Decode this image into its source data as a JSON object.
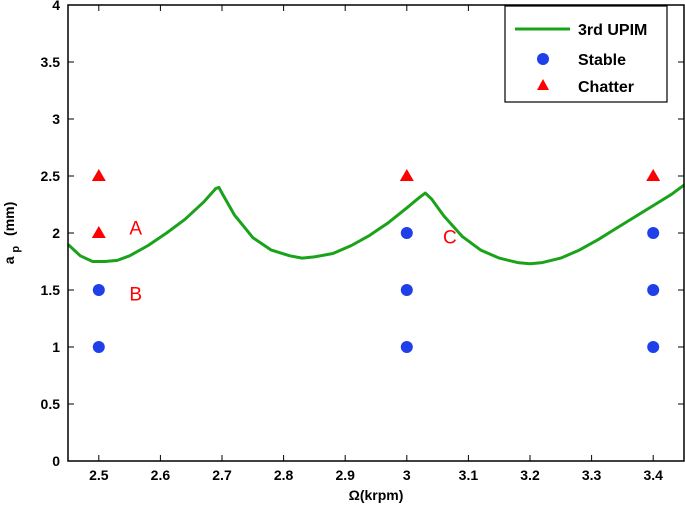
{
  "chart_data": {
    "type": "scatter",
    "xlabel": "Ω(krpm)",
    "ylabel_main": "a",
    "ylabel_sub": "p",
    "ylabel_unit": "(mm)",
    "xlim": [
      2.45,
      3.45
    ],
    "ylim": [
      0,
      4
    ],
    "xticks": [
      2.5,
      2.6,
      2.7,
      2.8,
      2.9,
      3,
      3.1,
      3.2,
      3.3,
      3.4
    ],
    "xtick_labels": [
      "2.5",
      "2.6",
      "2.7",
      "2.8",
      "2.9",
      "3",
      "3.1",
      "3.2",
      "3.3",
      "3.4"
    ],
    "yticks": [
      0,
      0.5,
      1,
      1.5,
      2,
      2.5,
      3,
      3.5,
      4
    ],
    "ytick_labels": [
      "0",
      "0.5",
      "1",
      "1.5",
      "2",
      "2.5",
      "3",
      "3.5",
      "4"
    ],
    "grid": false,
    "legend_position": "top-right",
    "colors": {
      "line": "#1aa31a",
      "stable": "#1f3fe8",
      "chatter": "#ff0000"
    },
    "series": [
      {
        "name": "3rd UPIM",
        "kind": "line",
        "x": [
          2.45,
          2.47,
          2.49,
          2.51,
          2.53,
          2.55,
          2.58,
          2.61,
          2.64,
          2.67,
          2.69,
          2.695,
          2.7,
          2.72,
          2.75,
          2.78,
          2.81,
          2.83,
          2.85,
          2.88,
          2.91,
          2.94,
          2.97,
          3.0,
          3.02,
          3.03,
          3.04,
          3.06,
          3.09,
          3.12,
          3.15,
          3.18,
          3.2,
          3.22,
          3.25,
          3.28,
          3.31,
          3.34,
          3.37,
          3.4,
          3.43,
          3.45
        ],
        "y": [
          1.9,
          1.8,
          1.75,
          1.75,
          1.76,
          1.8,
          1.89,
          2.0,
          2.12,
          2.27,
          2.39,
          2.4,
          2.35,
          2.16,
          1.96,
          1.85,
          1.8,
          1.78,
          1.79,
          1.82,
          1.89,
          1.98,
          2.09,
          2.22,
          2.31,
          2.35,
          2.3,
          2.15,
          1.97,
          1.85,
          1.78,
          1.74,
          1.73,
          1.74,
          1.78,
          1.85,
          1.94,
          2.04,
          2.14,
          2.24,
          2.34,
          2.42
        ]
      },
      {
        "name": "Stable",
        "kind": "marker-circle",
        "x": [
          2.5,
          2.5,
          3.0,
          3.0,
          3.0,
          3.4,
          3.4,
          3.4
        ],
        "y": [
          1.5,
          1.0,
          2.0,
          1.5,
          1.0,
          2.0,
          1.5,
          1.0
        ]
      },
      {
        "name": "Chatter",
        "kind": "marker-triangle",
        "x": [
          2.5,
          2.5,
          3.0,
          3.4
        ],
        "y": [
          2.5,
          2.0,
          2.5,
          2.5
        ]
      }
    ],
    "annotations": [
      {
        "text": "A",
        "x": 2.56,
        "y": 2.05
      },
      {
        "text": "B",
        "x": 2.56,
        "y": 1.47
      },
      {
        "text": "C",
        "x": 3.07,
        "y": 1.97
      }
    ]
  }
}
